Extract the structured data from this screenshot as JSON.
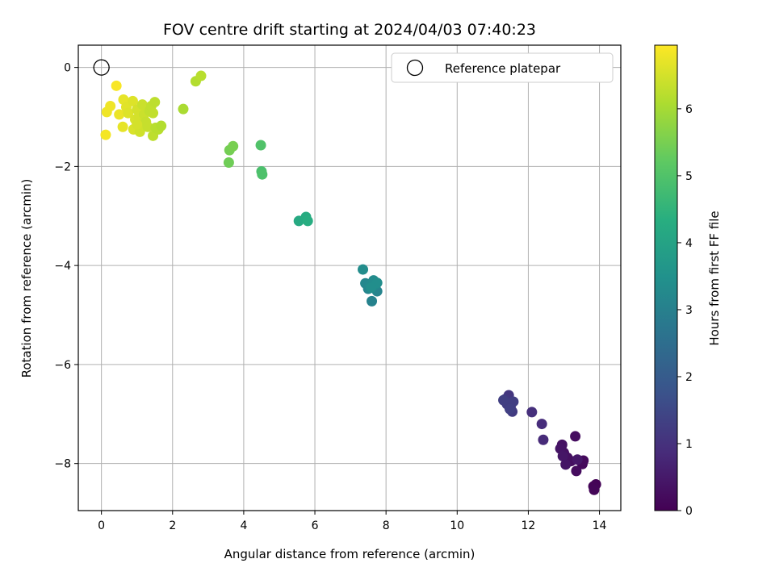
{
  "chart_data": {
    "type": "scatter",
    "title": "FOV centre drift starting at 2024/04/03 07:40:23",
    "xlabel": "Angular distance from reference (arcmin)",
    "ylabel": "Rotation from reference (arcmin)",
    "xlim": [
      -0.65,
      14.6
    ],
    "ylim": [
      -8.95,
      0.45
    ],
    "x_ticks": [
      0,
      2,
      4,
      6,
      8,
      10,
      12,
      14
    ],
    "x_tick_labels": [
      "0",
      "2",
      "4",
      "6",
      "8",
      "10",
      "12",
      "14"
    ],
    "y_ticks": [
      0,
      -2,
      -4,
      -6,
      -8
    ],
    "y_tick_labels": [
      "0",
      "−2",
      "−4",
      "−6",
      "−8"
    ],
    "grid": true,
    "legend_position": "top-right",
    "colormap": "viridis",
    "colorbar": {
      "label": "Hours from first FF file",
      "range": [
        0,
        6.95
      ],
      "ticks": [
        0,
        1,
        2,
        3,
        4,
        5,
        6
      ],
      "tick_labels": [
        "0",
        "1",
        "2",
        "3",
        "4",
        "5",
        "6"
      ]
    },
    "reference_point": {
      "name": "Reference platepar",
      "x": 0,
      "y": 0
    },
    "points": [
      {
        "x": 13.9,
        "y": -8.42,
        "h": 0.05
      },
      {
        "x": 13.83,
        "y": -8.46,
        "h": 0.08
      },
      {
        "x": 13.85,
        "y": -8.53,
        "h": 0.1
      },
      {
        "x": 13.52,
        "y": -8.01,
        "h": 0.15
      },
      {
        "x": 13.55,
        "y": -7.94,
        "h": 0.18
      },
      {
        "x": 13.35,
        "y": -8.15,
        "h": 0.22
      },
      {
        "x": 13.32,
        "y": -7.45,
        "h": 0.25
      },
      {
        "x": 13.2,
        "y": -7.95,
        "h": 0.28
      },
      {
        "x": 13.1,
        "y": -7.88,
        "h": 0.3
      },
      {
        "x": 13.0,
        "y": -7.78,
        "h": 0.33
      },
      {
        "x": 12.95,
        "y": -7.62,
        "h": 0.35
      },
      {
        "x": 12.9,
        "y": -7.7,
        "h": 0.38
      },
      {
        "x": 13.05,
        "y": -8.02,
        "h": 0.4
      },
      {
        "x": 12.97,
        "y": -7.85,
        "h": 0.42
      },
      {
        "x": 13.38,
        "y": -7.92,
        "h": 0.45
      },
      {
        "x": 12.42,
        "y": -7.52,
        "h": 0.85
      },
      {
        "x": 12.38,
        "y": -7.2,
        "h": 0.9
      },
      {
        "x": 12.1,
        "y": -6.96,
        "h": 0.95
      },
      {
        "x": 11.45,
        "y": -6.62,
        "h": 1.1
      },
      {
        "x": 11.35,
        "y": -6.7,
        "h": 1.15
      },
      {
        "x": 11.5,
        "y": -6.85,
        "h": 1.2
      },
      {
        "x": 11.55,
        "y": -6.95,
        "h": 1.22
      },
      {
        "x": 11.4,
        "y": -6.8,
        "h": 1.25
      },
      {
        "x": 11.58,
        "y": -6.75,
        "h": 1.28
      },
      {
        "x": 11.3,
        "y": -6.72,
        "h": 1.3
      },
      {
        "x": 11.48,
        "y": -6.9,
        "h": 1.32
      },
      {
        "x": 7.6,
        "y": -4.72,
        "h": 3.05
      },
      {
        "x": 7.75,
        "y": -4.52,
        "h": 3.1
      },
      {
        "x": 7.5,
        "y": -4.47,
        "h": 3.15
      },
      {
        "x": 7.42,
        "y": -4.36,
        "h": 3.2
      },
      {
        "x": 7.55,
        "y": -4.4,
        "h": 3.25
      },
      {
        "x": 7.7,
        "y": -4.38,
        "h": 3.3
      },
      {
        "x": 7.65,
        "y": -4.3,
        "h": 3.32
      },
      {
        "x": 7.35,
        "y": -4.08,
        "h": 3.35
      },
      {
        "x": 7.75,
        "y": -4.35,
        "h": 3.38
      },
      {
        "x": 7.58,
        "y": -4.45,
        "h": 3.4
      },
      {
        "x": 5.55,
        "y": -3.1,
        "h": 4.2
      },
      {
        "x": 5.75,
        "y": -3.02,
        "h": 4.25
      },
      {
        "x": 5.8,
        "y": -3.1,
        "h": 4.3
      },
      {
        "x": 4.5,
        "y": -2.1,
        "h": 4.9
      },
      {
        "x": 4.52,
        "y": -2.16,
        "h": 4.95
      },
      {
        "x": 4.48,
        "y": -1.57,
        "h": 5.0
      },
      {
        "x": 3.58,
        "y": -1.92,
        "h": 5.4
      },
      {
        "x": 3.6,
        "y": -1.67,
        "h": 5.45
      },
      {
        "x": 3.7,
        "y": -1.59,
        "h": 5.5
      },
      {
        "x": 2.3,
        "y": -0.84,
        "h": 6.05
      },
      {
        "x": 2.65,
        "y": -0.28,
        "h": 6.15
      },
      {
        "x": 2.8,
        "y": -0.17,
        "h": 6.2
      },
      {
        "x": 0.42,
        "y": -0.37,
        "h": 6.9
      },
      {
        "x": 0.12,
        "y": -1.36,
        "h": 6.85
      },
      {
        "x": 0.15,
        "y": -0.9,
        "h": 6.8
      },
      {
        "x": 0.25,
        "y": -0.78,
        "h": 6.8
      },
      {
        "x": 0.5,
        "y": -0.95,
        "h": 6.75
      },
      {
        "x": 0.6,
        "y": -1.2,
        "h": 6.7
      },
      {
        "x": 0.62,
        "y": -0.65,
        "h": 6.7
      },
      {
        "x": 0.7,
        "y": -0.8,
        "h": 6.65
      },
      {
        "x": 0.75,
        "y": -0.92,
        "h": 6.6
      },
      {
        "x": 0.88,
        "y": -0.68,
        "h": 6.6
      },
      {
        "x": 0.9,
        "y": -1.25,
        "h": 6.55
      },
      {
        "x": 0.95,
        "y": -1.05,
        "h": 6.55
      },
      {
        "x": 1.0,
        "y": -0.85,
        "h": 6.5
      },
      {
        "x": 1.05,
        "y": -1.0,
        "h": 6.5
      },
      {
        "x": 1.08,
        "y": -1.3,
        "h": 6.45
      },
      {
        "x": 1.1,
        "y": -1.15,
        "h": 6.45
      },
      {
        "x": 1.15,
        "y": -0.75,
        "h": 6.4
      },
      {
        "x": 1.2,
        "y": -0.95,
        "h": 6.4
      },
      {
        "x": 1.25,
        "y": -1.1,
        "h": 6.35
      },
      {
        "x": 1.3,
        "y": -1.2,
        "h": 6.35
      },
      {
        "x": 1.35,
        "y": -0.88,
        "h": 6.3
      },
      {
        "x": 1.4,
        "y": -0.78,
        "h": 6.3
      },
      {
        "x": 1.45,
        "y": -1.38,
        "h": 6.25
      },
      {
        "x": 1.5,
        "y": -0.7,
        "h": 6.25
      },
      {
        "x": 1.52,
        "y": -1.22,
        "h": 6.2
      },
      {
        "x": 1.6,
        "y": -1.25,
        "h": 6.2
      },
      {
        "x": 1.68,
        "y": -1.18,
        "h": 6.15
      },
      {
        "x": 1.45,
        "y": -0.92,
        "h": 6.3
      },
      {
        "x": 1.0,
        "y": -1.15,
        "h": 6.5
      }
    ]
  }
}
